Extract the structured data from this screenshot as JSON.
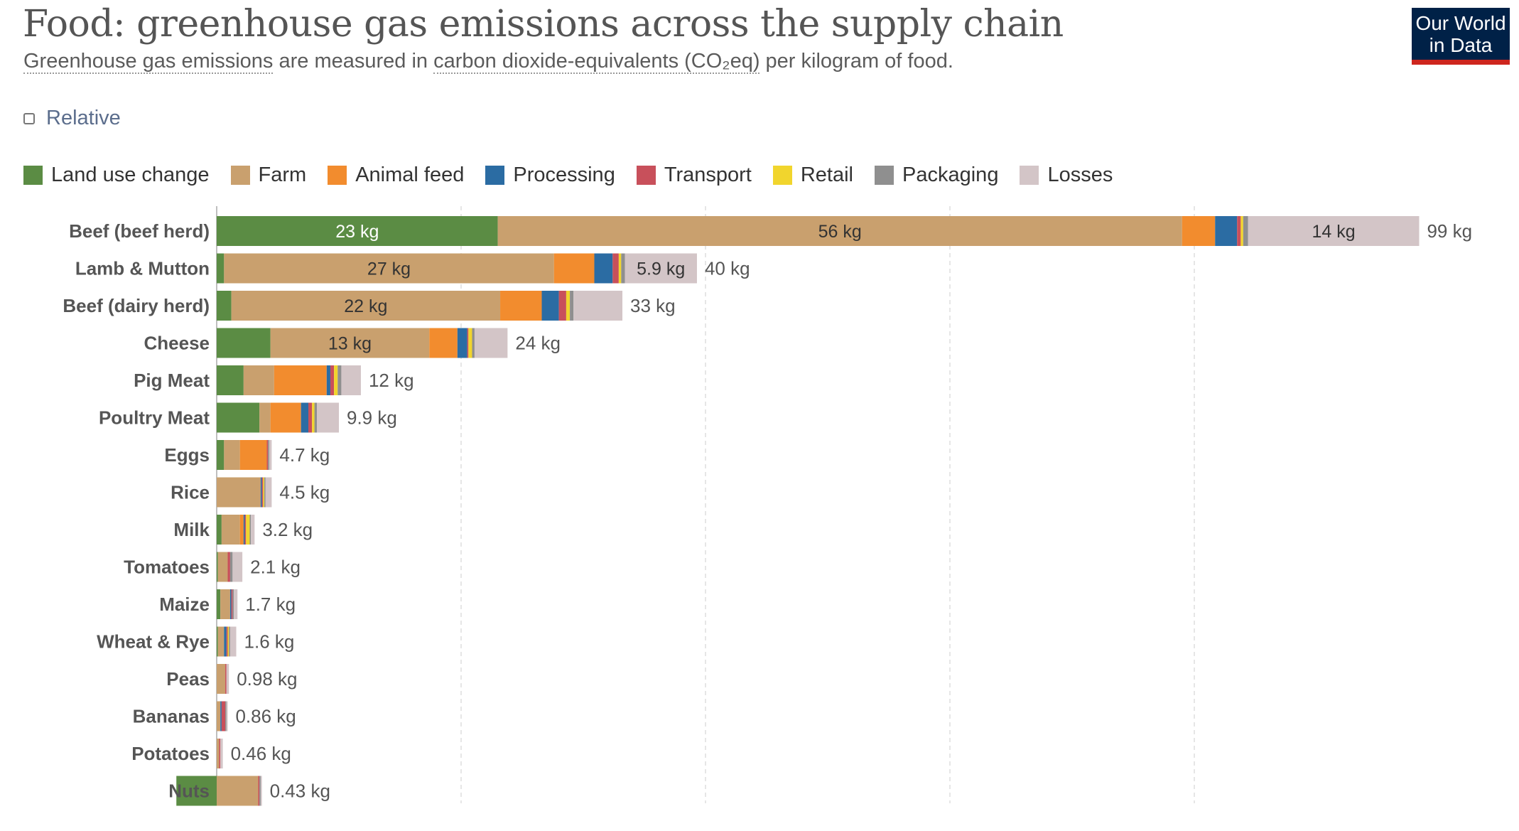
{
  "title": "Food: greenhouse gas emissions across the supply chain",
  "subtitle": {
    "link1": "Greenhouse gas emissions",
    "text1": " are measured in ",
    "link2": "carbon dioxide-equivalents (CO₂eq)",
    "text2": " per kilogram of food."
  },
  "logo": {
    "line1": "Our World",
    "line2": "in Data"
  },
  "relative_toggle": {
    "label": "Relative",
    "checked": false
  },
  "chart_data": {
    "type": "bar",
    "orientation": "horizontal",
    "stacked": true,
    "title": "Food: greenhouse gas emissions across the supply chain",
    "unit": "kg",
    "xlim": [
      0,
      100
    ],
    "grid": true,
    "legend_position": "top",
    "categories": [
      "Beef (beef herd)",
      "Lamb & Mutton",
      "Beef (dairy herd)",
      "Cheese",
      "Pig Meat",
      "Poultry Meat",
      "Eggs",
      "Rice",
      "Milk",
      "Tomatoes",
      "Maize",
      "Wheat & Rye",
      "Peas",
      "Bananas",
      "Potatoes",
      "Nuts"
    ],
    "totals": [
      99,
      40,
      33,
      24,
      12,
      9.9,
      4.7,
      4.5,
      3.2,
      2.1,
      1.7,
      1.6,
      0.98,
      0.86,
      0.46,
      0.43
    ],
    "total_labels": [
      "99 kg",
      "40 kg",
      "33 kg",
      "24 kg",
      "12 kg",
      "9.9 kg",
      "4.7 kg",
      "4.5 kg",
      "3.2 kg",
      "2.1 kg",
      "1.7 kg",
      "1.6 kg",
      "0.98 kg",
      "0.86 kg",
      "0.46 kg",
      "0.43 kg"
    ],
    "series": [
      {
        "name": "Land use change",
        "color": "#5b8c44",
        "values": [
          23,
          0.6,
          1.2,
          4.4,
          2.2,
          3.5,
          0.6,
          0,
          0.4,
          0.1,
          0.3,
          0.1,
          0,
          0,
          0,
          -3.3
        ],
        "labels": [
          "23 kg",
          "",
          "",
          "",
          "",
          "",
          "",
          "",
          "",
          "",
          "",
          "",
          "",
          "",
          "",
          ""
        ]
      },
      {
        "name": "Farm",
        "color": "#c9a06e",
        "values": [
          56,
          27,
          22,
          13,
          2.5,
          0.9,
          1.3,
          3.6,
          1.5,
          0.8,
          0.8,
          0.5,
          0.7,
          0.3,
          0.2,
          3.4
        ],
        "labels": [
          "56 kg",
          "27 kg",
          "22 kg",
          "13 kg",
          "",
          "",
          "",
          "",
          "",
          "",
          "",
          "",
          "",
          "",
          "",
          ""
        ]
      },
      {
        "name": "Animal feed",
        "color": "#f28c2e",
        "values": [
          2.7,
          3.3,
          3.4,
          2.3,
          4.3,
          2.5,
          2.2,
          0,
          0.3,
          0,
          0,
          0,
          0,
          0,
          0,
          0
        ],
        "labels": [
          "",
          "",
          "",
          "",
          "",
          "",
          "",
          "",
          "",
          "",
          "",
          "",
          "",
          "",
          "",
          ""
        ]
      },
      {
        "name": "Processing",
        "color": "#2b6ca3",
        "values": [
          1.8,
          1.5,
          1.4,
          0.8,
          0.3,
          0.6,
          0,
          0.1,
          0.1,
          0,
          0.1,
          0.2,
          0,
          0.1,
          0,
          0
        ],
        "labels": [
          "",
          "",
          "",
          "",
          "",
          "",
          "",
          "",
          "",
          "",
          "",
          "",
          "",
          "",
          "",
          ""
        ]
      },
      {
        "name": "Transport",
        "color": "#c8505b",
        "values": [
          0.3,
          0.5,
          0.6,
          0.1,
          0.3,
          0.3,
          0.1,
          0.1,
          0.1,
          0.2,
          0.1,
          0.1,
          0.1,
          0.3,
          0.1,
          0.1
        ],
        "labels": [
          "",
          "",
          "",
          "",
          "",
          "",
          "",
          "",
          "",
          "",
          "",
          "",
          "",
          "",
          "",
          ""
        ]
      },
      {
        "name": "Retail",
        "color": "#f1d52d",
        "values": [
          0.2,
          0.2,
          0.3,
          0.3,
          0.3,
          0.2,
          0,
          0.1,
          0.3,
          0,
          0,
          0.1,
          0,
          0,
          0,
          0
        ],
        "labels": [
          "",
          "",
          "",
          "",
          "",
          "",
          "",
          "",
          "",
          "",
          "",
          "",
          "",
          "",
          "",
          ""
        ]
      },
      {
        "name": "Packaging",
        "color": "#8f8f8f",
        "values": [
          0.4,
          0.3,
          0.3,
          0.2,
          0.3,
          0.2,
          0.1,
          0.1,
          0.1,
          0.2,
          0.1,
          0.1,
          0,
          0.1,
          0,
          0.1
        ],
        "labels": [
          "",
          "",
          "",
          "",
          "",
          "",
          "",
          "",
          "",
          "",
          "",
          "",
          "",
          "",
          "",
          ""
        ]
      },
      {
        "name": "Losses",
        "color": "#d3c5c7",
        "values": [
          14,
          5.9,
          4.0,
          2.7,
          1.6,
          1.8,
          0.2,
          0.5,
          0.3,
          0.8,
          0.3,
          0.5,
          0.2,
          0.1,
          0.2,
          0.1
        ],
        "labels": [
          "14 kg",
          "5.9 kg",
          "",
          "",
          "",
          "",
          "",
          "",
          "",
          "",
          "",
          "",
          "",
          "",
          "",
          ""
        ]
      }
    ]
  }
}
